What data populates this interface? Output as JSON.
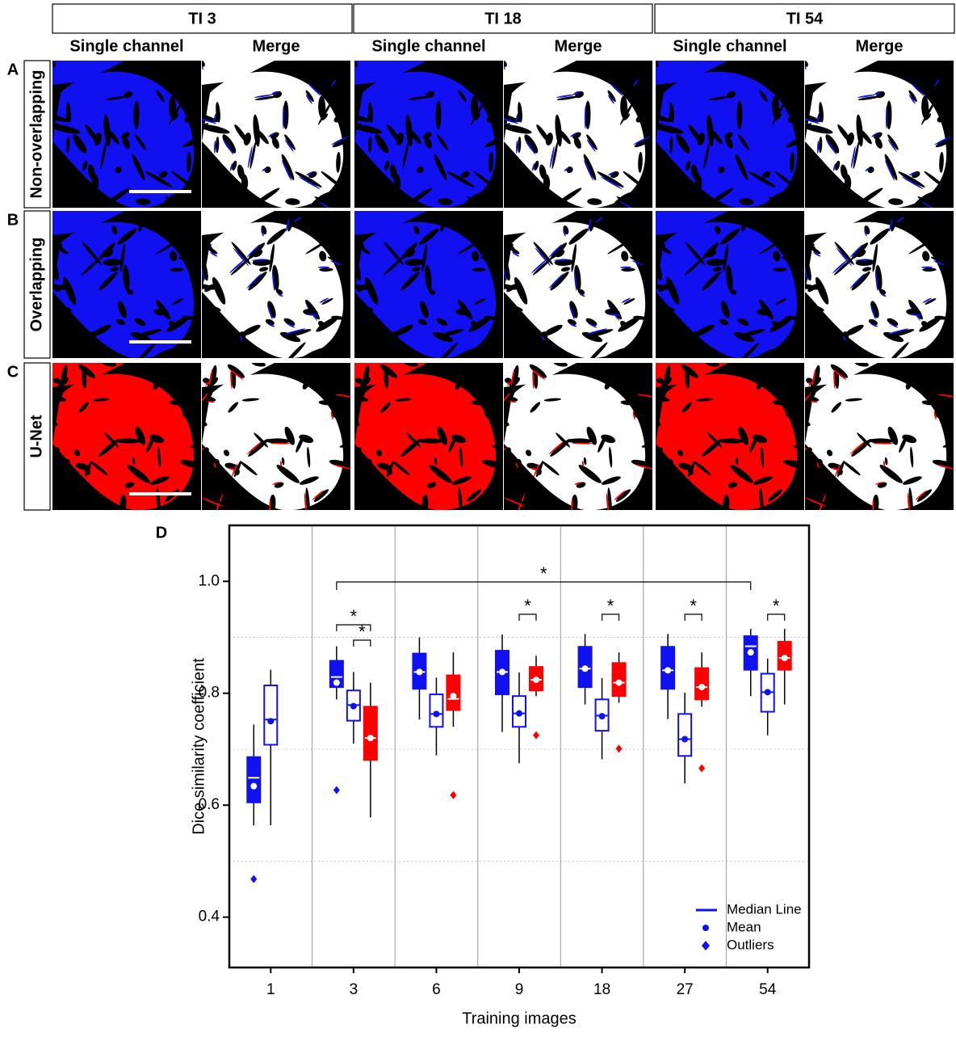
{
  "figure": {
    "columns": [
      {
        "title": "TI 3",
        "subtitles": [
          "Single channel",
          "Merge"
        ]
      },
      {
        "title": "TI 18",
        "subtitles": [
          "Single channel",
          "Merge"
        ]
      },
      {
        "title": "TI 54",
        "subtitles": [
          "Single channel",
          "Merge"
        ]
      }
    ],
    "rows": [
      {
        "letter": "A",
        "label": "Non-overlapping",
        "color": "#1010f0"
      },
      {
        "letter": "B",
        "label": "Overlapping",
        "color": "#1010f0"
      },
      {
        "letter": "C",
        "label": "U-Net",
        "color": "#ff0000"
      }
    ]
  },
  "chart_data": {
    "type": "box",
    "panel_letter": "D",
    "x_label": "Training images",
    "y_label": "Dice similarity coefficient",
    "categories": [
      "1",
      "3",
      "6",
      "9",
      "18",
      "27",
      "54"
    ],
    "ylim": [
      0.31,
      1.1
    ],
    "yticks": [
      0.4,
      0.6,
      0.8,
      {
        "value": 1.0,
        "label": "1.0"
      }
    ],
    "ygrid": [
      0.5,
      0.7,
      0.9
    ],
    "legend": [
      "Median Line",
      "Mean",
      "Outliers"
    ],
    "legend_position": "lower right",
    "annotations": [
      "*",
      "*",
      "*",
      "*",
      "*",
      "*",
      "*"
    ],
    "series": [
      {
        "color": "#1010f0",
        "style": "filled",
        "whisker_low": [
          0.564,
          0.789,
          0.753,
          0.731,
          0.78,
          0.754,
          0.795
        ],
        "q1": [
          0.605,
          0.811,
          0.808,
          0.798,
          0.811,
          0.808,
          0.842
        ],
        "median": [
          0.649,
          0.829,
          0.838,
          0.838,
          0.844,
          0.841,
          0.884
        ],
        "q3": [
          0.686,
          0.858,
          0.871,
          0.876,
          0.883,
          0.883,
          0.902
        ],
        "whisker_high": [
          0.744,
          0.884,
          0.9,
          0.905,
          0.906,
          0.906,
          0.915
        ],
        "mean": [
          0.634,
          0.819,
          0.838,
          0.838,
          0.844,
          0.841,
          0.873
        ],
        "outliers": [
          [
            0.468
          ],
          [
            0.627
          ],
          [],
          [],
          [],
          [],
          []
        ]
      },
      {
        "color": "#1010f0",
        "style": "hollow",
        "whisker_low": [
          0.564,
          0.71,
          0.689,
          0.675,
          0.682,
          0.639,
          0.725
        ],
        "q1": [
          0.708,
          0.751,
          0.74,
          0.74,
          0.733,
          0.688,
          0.767
        ],
        "median": [
          0.753,
          0.779,
          0.763,
          0.764,
          0.76,
          0.718,
          0.802
        ],
        "q3": [
          0.814,
          0.805,
          0.798,
          0.795,
          0.789,
          0.763,
          0.835
        ],
        "whisker_high": [
          0.842,
          0.838,
          0.828,
          0.837,
          0.827,
          0.801,
          0.862
        ],
        "mean": [
          0.75,
          0.777,
          0.763,
          0.764,
          0.759,
          0.718,
          0.802
        ],
        "outliers": [
          [],
          [],
          [],
          [],
          [],
          [],
          []
        ]
      },
      {
        "color": "#ff0000",
        "style": "filled",
        "whisker_low": [
          null,
          0.578,
          0.74,
          0.795,
          0.783,
          0.776,
          0.78
        ],
        "q1": [
          null,
          0.681,
          0.77,
          0.805,
          0.795,
          0.789,
          0.842
        ],
        "median": [
          null,
          0.72,
          0.79,
          0.824,
          0.819,
          0.811,
          0.863
        ],
        "q3": [
          null,
          0.776,
          0.832,
          0.847,
          0.854,
          0.845,
          0.892
        ],
        "whisker_high": [
          null,
          0.819,
          0.873,
          0.867,
          0.873,
          0.873,
          0.915
        ],
        "mean": [
          null,
          0.72,
          0.795,
          0.824,
          0.819,
          0.811,
          0.863
        ],
        "outliers": [
          null,
          [],
          [
            0.618
          ],
          [
            0.725
          ],
          [
            0.701
          ],
          [
            0.666
          ],
          []
        ]
      }
    ]
  }
}
